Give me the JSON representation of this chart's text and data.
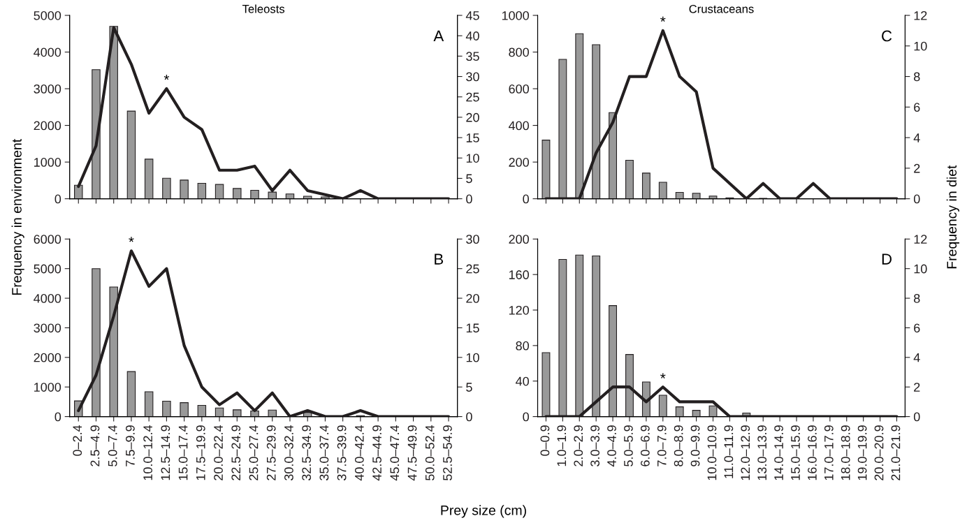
{
  "chart_data": [
    {
      "type": "bar",
      "title": "Teleosts",
      "ylabel": "Frequency in environment",
      "tick_labels": "y",
      "annotations": [
        "A",
        {
          "text": "*",
          "x": "12.5–14.9",
          "y": 3000
        }
      ],
      "categories": [
        "0–2.4",
        "2.5–4.9",
        "5.0–7.4",
        "7.5–9.9",
        "10.0–12.4",
        "12.5–14.9",
        "15.0–17.4",
        "17.5–19.9",
        "20.0–22.4",
        "22.5–24.9",
        "25.0–27.4",
        "27.5–29.9",
        "30.0–32.4",
        "32.5–34.9",
        "35.0–37.4",
        "37.5–39.9",
        "40.0–42.4",
        "42.5–44.9",
        "45.0–47.4",
        "47.5–49.9",
        "50.0–52.4",
        "52.5–54.9"
      ],
      "ylim": [
        0,
        5000
      ],
      "yticks": [
        0,
        1000,
        2000,
        3000,
        4000,
        5000
      ],
      "y2lim": [
        0,
        45
      ],
      "y2ticks": [
        0,
        5,
        10,
        15,
        20,
        25,
        30,
        35,
        40,
        45
      ],
      "series": [
        {
          "color": "#999999",
          "values": [
            370,
            3520,
            4700,
            2390,
            1080,
            560,
            510,
            420,
            390,
            280,
            230,
            180,
            130,
            70,
            50,
            0,
            0,
            0,
            0,
            0,
            0,
            0
          ]
        },
        {
          "type": "line",
          "axis": "y2",
          "color": "#231f20",
          "values": [
            3,
            13,
            42,
            33,
            21,
            27,
            20,
            17,
            7,
            7,
            8,
            2,
            7,
            2,
            1,
            0,
            2,
            0,
            0,
            0,
            0,
            0
          ]
        }
      ]
    },
    {
      "type": "bar",
      "title": "Crustaceans",
      "y2label": "Frequency in diet",
      "tick_labels": "y",
      "annotations": [
        "C",
        {
          "text": "*",
          "x": "7.0–7.9",
          "y": 917
        }
      ],
      "categories": [
        "0–0.9",
        "1.0–1.9",
        "2.0–2.9",
        "3.0–3.9",
        "4.0–4.9",
        "5.0–5.9",
        "6.0–6.9",
        "7.0–7.9",
        "8.0–8.9",
        "9.0–9.9",
        "10.0–10.9",
        "11.0–11.9",
        "12.0–12.9",
        "13.0–13.9",
        "14.0–14.9",
        "15.0–15.9",
        "16.0–16.9",
        "17.0–17.9",
        "18.0–18.9",
        "19.0–19.9",
        "20.0–20.9",
        "21.0–21.9"
      ],
      "ylim": [
        0,
        1000
      ],
      "yticks": [
        0,
        200,
        400,
        600,
        800,
        1000
      ],
      "y2lim": [
        0,
        12
      ],
      "y2ticks": [
        0,
        2,
        4,
        6,
        8,
        10,
        12
      ],
      "series": [
        {
          "color": "#999999",
          "values": [
            320,
            760,
            900,
            840,
            470,
            210,
            140,
            90,
            35,
            30,
            15,
            5,
            0,
            2,
            0,
            0,
            0,
            0,
            0,
            0,
            0,
            0
          ]
        },
        {
          "type": "line",
          "axis": "y2",
          "color": "#231f20",
          "values": [
            0,
            0,
            0,
            3,
            5,
            8,
            8,
            11,
            8,
            7,
            2,
            1,
            0,
            1,
            0,
            0,
            1,
            0,
            0,
            0,
            0,
            0
          ]
        }
      ]
    },
    {
      "type": "bar",
      "xlabel": "Prey size (cm)",
      "annotations": [
        "B",
        {
          "text": "*",
          "x": "7.5–9.9",
          "y": 5600
        }
      ],
      "categories": [
        "0–2.4",
        "2.5–4.9",
        "5.0–7.4",
        "7.5–9.9",
        "10.0–12.4",
        "12.5–14.9",
        "15.0–17.4",
        "17.5–19.9",
        "20.0–22.4",
        "22.5–24.9",
        "25.0–27.4",
        "27.5–29.9",
        "30.0–32.4",
        "32.5–34.9",
        "35.0–37.4",
        "37.5–39.9",
        "40.0–42.4",
        "42.5–44.9",
        "45.0–47.4",
        "47.5–49.9",
        "50.0–52.4",
        "52.5–54.9"
      ],
      "ylim": [
        0,
        6000
      ],
      "yticks": [
        0,
        1000,
        2000,
        3000,
        4000,
        5000,
        6000
      ],
      "y2lim": [
        0,
        30
      ],
      "y2ticks": [
        0,
        5,
        10,
        15,
        20,
        25,
        30
      ],
      "series": [
        {
          "color": "#999999",
          "values": [
            530,
            5000,
            4380,
            1520,
            840,
            520,
            470,
            380,
            290,
            230,
            190,
            220,
            null,
            140,
            null,
            20,
            30,
            0,
            0,
            0,
            0,
            0
          ]
        },
        {
          "type": "line",
          "axis": "y2",
          "color": "#231f20",
          "values": [
            1,
            7,
            17,
            28,
            22,
            25,
            12,
            5,
            2,
            4,
            1,
            4,
            0,
            1,
            0,
            0,
            1,
            0,
            0,
            0,
            0,
            0
          ]
        }
      ]
    },
    {
      "type": "bar",
      "annotations": [
        "D",
        {
          "text": "*",
          "x": "7.0–7.9",
          "y": 33
        }
      ],
      "categories": [
        "0–0.9",
        "1.0–1.9",
        "2.0–2.9",
        "3.0–3.9",
        "4.0–4.9",
        "5.0–5.9",
        "6.0–6.9",
        "7.0–7.9",
        "8.0–8.9",
        "9.0–9.9",
        "10.0–10.9",
        "11.0–11.9",
        "12.0–12.9",
        "13.0–13.9",
        "14.0–14.9",
        "15.0–15.9",
        "16.0–16.9",
        "17.0–17.9",
        "18.0–18.9",
        "19.0–19.9",
        "20.0–20.9",
        "21.0–21.9"
      ],
      "ylim": [
        0,
        200
      ],
      "yticks": [
        0,
        40,
        80,
        120,
        160,
        200
      ],
      "y2lim": [
        0,
        12
      ],
      "y2ticks": [
        0,
        2,
        4,
        6,
        8,
        10,
        12
      ],
      "series": [
        {
          "color": "#999999",
          "values": [
            72,
            177,
            182,
            181,
            125,
            70,
            39,
            24,
            11,
            7,
            12,
            0,
            4,
            0,
            0,
            null,
            0,
            0,
            0,
            0,
            0,
            0
          ]
        },
        {
          "type": "line",
          "axis": "y2",
          "color": "#231f20",
          "values": [
            0,
            0,
            0,
            1,
            2,
            2,
            1,
            2,
            1,
            1,
            1,
            0,
            0,
            0,
            0,
            0,
            0,
            0,
            0,
            0,
            0,
            0
          ]
        }
      ]
    }
  ]
}
